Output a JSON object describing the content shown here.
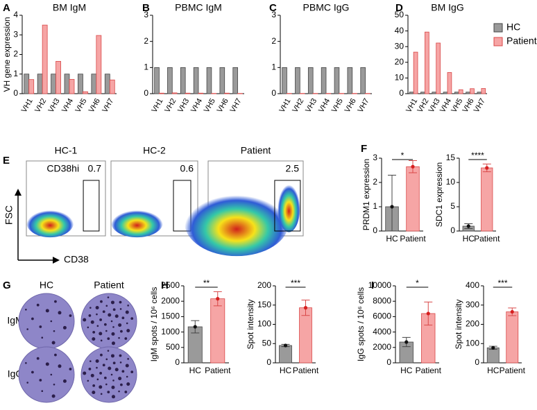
{
  "panel_labels": [
    "A",
    "B",
    "C",
    "D",
    "E",
    "F",
    "G",
    "H",
    "I"
  ],
  "chart_data": [
    {
      "type": "grouped-bar",
      "title": "BM IgM",
      "y_label": "VH gene expression",
      "categories": [
        "VH1",
        "VH2",
        "VH3",
        "VH4",
        "VH5",
        "VH6",
        "VH7"
      ],
      "series": [
        {
          "color": "#9a9a9a",
          "values": [
            1,
            1,
            1,
            1,
            1,
            1,
            1
          ]
        },
        {
          "color": "#f6a5a5",
          "values": [
            0.72,
            3.5,
            1.65,
            0.73,
            0.1,
            2.97,
            0.7
          ]
        }
      ],
      "ylim": [
        0,
        4
      ],
      "yticks": [
        0,
        1,
        2,
        3,
        4
      ]
    },
    {
      "type": "grouped-bar",
      "title": "PBMC IgM",
      "categories": [
        "VH1",
        "VH2",
        "VH3",
        "VH4",
        "VH5",
        "VH6",
        "VH7"
      ],
      "series": [
        {
          "color": "#9a9a9a",
          "values": [
            1,
            1,
            1,
            1,
            1,
            1,
            1
          ]
        },
        {
          "color": "#f6a5a5",
          "values": [
            0.02,
            0.03,
            0.02,
            0.02,
            0.01,
            0.02,
            0.01
          ]
        }
      ],
      "ylim": [
        0,
        3
      ],
      "yticks": [
        0,
        1,
        2,
        3
      ]
    },
    {
      "type": "grouped-bar",
      "title": "PBMC IgG",
      "categories": [
        "VH1",
        "VH2",
        "VH3",
        "VH4",
        "VH5",
        "VH6",
        "VH7"
      ],
      "series": [
        {
          "color": "#9a9a9a",
          "values": [
            1,
            1,
            1,
            1,
            1,
            1,
            1
          ]
        },
        {
          "color": "#f6a5a5",
          "values": [
            0.01,
            0.01,
            0.01,
            0.01,
            0.01,
            0.01,
            0.01
          ]
        }
      ],
      "ylim": [
        0,
        3
      ],
      "yticks": [
        0,
        1,
        2,
        3
      ]
    },
    {
      "type": "grouped-bar",
      "title": "BM IgG",
      "categories": [
        "VH1",
        "VH2",
        "VH3",
        "VH4",
        "VH5",
        "VH6",
        "VH7"
      ],
      "series": [
        {
          "name": "HC",
          "color": "#9a9a9a",
          "values": [
            1,
            1,
            1,
            1,
            1,
            1,
            1
          ]
        },
        {
          "name": "Patient",
          "color": "#f6a5a5",
          "values": [
            26.5,
            39.3,
            32.3,
            13.5,
            2.5,
            3.2,
            3.3
          ]
        }
      ],
      "ylim": [
        0,
        50
      ],
      "yticks": [
        0,
        10,
        20,
        30,
        40,
        50
      ],
      "legend": "right"
    },
    {
      "type": "bar",
      "y_label": "PRDM1 expression",
      "categories": [
        "HC",
        "Patient"
      ],
      "values": [
        1.0,
        2.65
      ],
      "errors": [
        1.3,
        0.25
      ],
      "colors": [
        "#9a9a9a",
        "#f6a5a5"
      ],
      "ylim": [
        0,
        3
      ],
      "yticks": [
        0,
        1,
        2,
        3
      ],
      "significance": "*"
    },
    {
      "type": "bar",
      "y_label": "SDC1 expression",
      "categories": [
        "HC",
        "Patient"
      ],
      "values": [
        1.0,
        13.0
      ],
      "errors": [
        0.5,
        0.8
      ],
      "colors": [
        "#9a9a9a",
        "#f6a5a5"
      ],
      "ylim": [
        0,
        15
      ],
      "yticks": [
        0,
        5,
        10,
        15
      ],
      "significance": "****"
    },
    {
      "type": "bar",
      "y_label": "IgM spots / 10⁶ cells",
      "categories": [
        "HC",
        "Patient"
      ],
      "values": [
        1170,
        2080
      ],
      "errors": [
        200,
        230
      ],
      "colors": [
        "#9a9a9a",
        "#f6a5a5"
      ],
      "ylim": [
        0,
        2500
      ],
      "yticks": [
        0,
        500,
        1000,
        1500,
        2000,
        2500
      ],
      "significance": "**"
    },
    {
      "type": "bar",
      "y_label": "Spot intensity",
      "categories": [
        "HC",
        "Patient"
      ],
      "values": [
        45,
        143
      ],
      "errors": [
        3,
        20
      ],
      "colors": [
        "#9a9a9a",
        "#f6a5a5"
      ],
      "ylim": [
        0,
        200
      ],
      "yticks": [
        0,
        50,
        100,
        150,
        200
      ],
      "significance": "***"
    },
    {
      "type": "bar",
      "y_label": "IgG spots / 10⁶ cells",
      "categories": [
        "HC",
        "Patient"
      ],
      "values": [
        2700,
        6400
      ],
      "errors": [
        600,
        1500
      ],
      "colors": [
        "#9a9a9a",
        "#f6a5a5"
      ],
      "ylim": [
        0,
        10000
      ],
      "yticks": [
        0,
        2000,
        4000,
        6000,
        8000,
        10000
      ],
      "significance": "*"
    },
    {
      "type": "bar",
      "y_label": "Spot intensity",
      "categories": [
        "HC",
        "Patient"
      ],
      "values": [
        78,
        265
      ],
      "errors": [
        8,
        20
      ],
      "colors": [
        "#9a9a9a",
        "#f6a5a5"
      ],
      "ylim": [
        0,
        400
      ],
      "yticks": [
        0,
        100,
        200,
        300,
        400
      ],
      "significance": "***"
    }
  ],
  "flow": {
    "plots": [
      {
        "title": "HC-1",
        "gate_label": "CD38hi",
        "percent": 0.7
      },
      {
        "title": "HC-2",
        "percent": 0.6
      },
      {
        "title": "Patient",
        "percent": 2.5
      }
    ],
    "y_label": "FSC",
    "x_label": "CD38"
  },
  "elispot": {
    "columns": [
      "HC",
      "Patient"
    ],
    "rows": [
      "IgM",
      "IgG"
    ]
  }
}
